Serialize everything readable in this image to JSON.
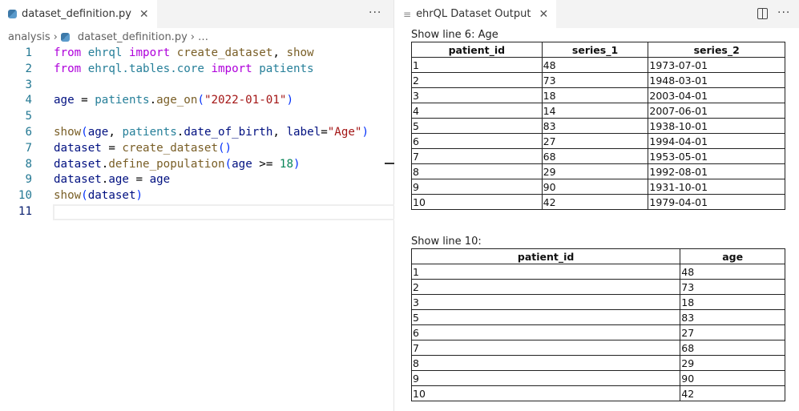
{
  "editor": {
    "tab_label": "dataset_definition.py",
    "breadcrumb": [
      "analysis",
      "dataset_definition.py",
      "…"
    ],
    "lines": [
      [
        [
          "from",
          "k"
        ],
        [
          " ehrql ",
          "m"
        ],
        [
          "import",
          "k"
        ],
        [
          " create_dataset",
          "f"
        ],
        [
          ", ",
          "o"
        ],
        [
          "show",
          "f"
        ]
      ],
      [
        [
          "from",
          "k"
        ],
        [
          " ehrql.tables.core ",
          "m"
        ],
        [
          "import",
          "k"
        ],
        [
          " patients",
          "m"
        ]
      ],
      [],
      [
        [
          "age",
          "v"
        ],
        [
          " = ",
          "o"
        ],
        [
          "patients",
          "m"
        ],
        [
          ".",
          "o"
        ],
        [
          "age_on",
          "f"
        ],
        [
          "(",
          "p"
        ],
        [
          "\"2022-01-01\"",
          "s"
        ],
        [
          ")",
          "p"
        ]
      ],
      [],
      [
        [
          "show",
          "f"
        ],
        [
          "(",
          "p"
        ],
        [
          "age",
          "v"
        ],
        [
          ", ",
          "o"
        ],
        [
          "patients",
          "m"
        ],
        [
          ".",
          "o"
        ],
        [
          "date_of_birth",
          "v"
        ],
        [
          ", ",
          "o"
        ],
        [
          "label",
          "v"
        ],
        [
          "=",
          "o"
        ],
        [
          "\"Age\"",
          "s"
        ],
        [
          ")",
          "p"
        ]
      ],
      [
        [
          "dataset",
          "v"
        ],
        [
          " = ",
          "o"
        ],
        [
          "create_dataset",
          "f"
        ],
        [
          "()",
          "p"
        ]
      ],
      [
        [
          "dataset",
          "v"
        ],
        [
          ".",
          "o"
        ],
        [
          "define_population",
          "f"
        ],
        [
          "(",
          "p"
        ],
        [
          "age",
          "v"
        ],
        [
          " >= ",
          "o"
        ],
        [
          "18",
          "n"
        ],
        [
          ")",
          "p"
        ]
      ],
      [
        [
          "dataset",
          "v"
        ],
        [
          ".",
          "o"
        ],
        [
          "age",
          "v"
        ],
        [
          " = ",
          "o"
        ],
        [
          "age",
          "v"
        ]
      ],
      [
        [
          "show",
          "f"
        ],
        [
          "(",
          "p"
        ],
        [
          "dataset",
          "v"
        ],
        [
          ")",
          "p"
        ]
      ],
      []
    ]
  },
  "output": {
    "tab_label": "ehrQL Dataset Output",
    "table1": {
      "title": "Show line 6: Age",
      "headers": [
        "patient_id",
        "series_1",
        "series_2"
      ],
      "rows": [
        [
          "1",
          "48",
          "1973-07-01"
        ],
        [
          "2",
          "73",
          "1948-03-01"
        ],
        [
          "3",
          "18",
          "2003-04-01"
        ],
        [
          "4",
          "14",
          "2007-06-01"
        ],
        [
          "5",
          "83",
          "1938-10-01"
        ],
        [
          "6",
          "27",
          "1994-04-01"
        ],
        [
          "7",
          "68",
          "1953-05-01"
        ],
        [
          "8",
          "29",
          "1992-08-01"
        ],
        [
          "9",
          "90",
          "1931-10-01"
        ],
        [
          "10",
          "42",
          "1979-04-01"
        ]
      ]
    },
    "table2": {
      "title": "Show line 10:",
      "headers": [
        "patient_id",
        "age"
      ],
      "rows": [
        [
          "1",
          "48"
        ],
        [
          "2",
          "73"
        ],
        [
          "3",
          "18"
        ],
        [
          "5",
          "83"
        ],
        [
          "6",
          "27"
        ],
        [
          "7",
          "68"
        ],
        [
          "8",
          "29"
        ],
        [
          "9",
          "90"
        ],
        [
          "10",
          "42"
        ]
      ]
    }
  }
}
